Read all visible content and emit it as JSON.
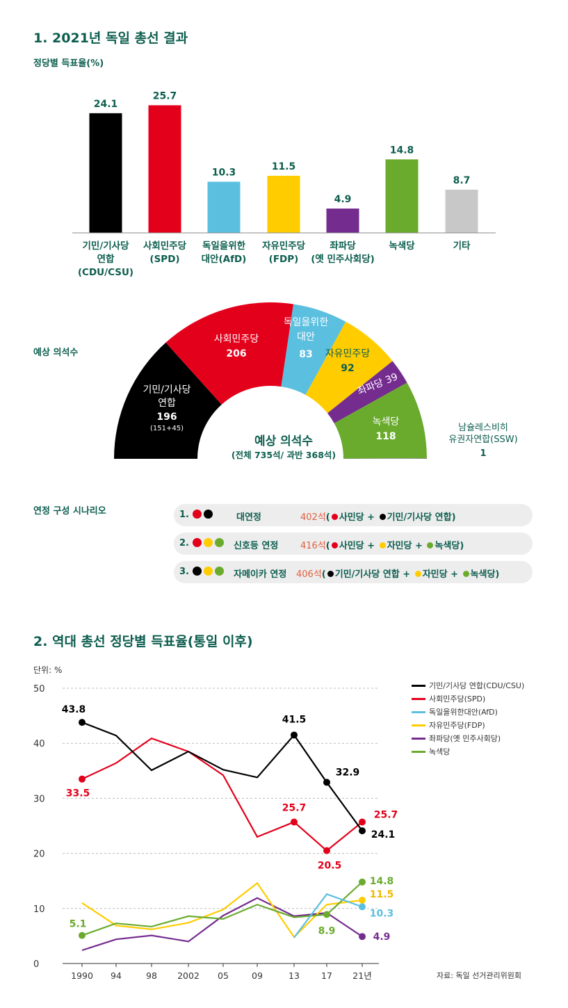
{
  "section1": {
    "title": "1. 2021년 독일 총선 결과",
    "vote_label": "정당별 득표율(%)"
  },
  "chart_data": [
    {
      "type": "bar",
      "title": "정당별 득표율(%)",
      "categories": [
        "기민/기사당\n연합\n(CDU/CSU)",
        "사회민주당\n(SPD)",
        "독일을위한\n대안(AfD)",
        "자유민주당\n(FDP)",
        "좌파당\n(옛 민주사회당)",
        "녹색당",
        "기타"
      ],
      "values": [
        24.1,
        25.7,
        10.3,
        11.5,
        4.9,
        14.8,
        8.7
      ],
      "value_labels": [
        "24.1",
        "25.7",
        "10.3",
        "11.5",
        "4.9",
        "14.8",
        "8.7"
      ],
      "colors": [
        "#000000",
        "#e3001b",
        "#5bbfe0",
        "#ffcc00",
        "#742c8f",
        "#6aab2e",
        "#c8c8c8"
      ],
      "ylim": [
        0,
        28
      ]
    },
    {
      "type": "pie",
      "title": "예상 의석수",
      "center_title": "예상 의석수",
      "center_subtitle": "(전체 735석/ 과반 368석)",
      "categories": [
        "기민/기사당\n연합",
        "사회민주당",
        "독일을위한\n대안",
        "자유민주당",
        "좌파당",
        "녹색당",
        "남슐레스비히\n유권자연합(SSW)"
      ],
      "values": [
        196,
        206,
        83,
        92,
        39,
        118,
        1
      ],
      "value_labels": [
        "196",
        "206",
        "83",
        "92",
        "39",
        "118",
        "1"
      ],
      "sub_labels": [
        "(151+45)",
        "",
        "",
        "",
        "",
        "",
        ""
      ],
      "colors": [
        "#000000",
        "#e3001b",
        "#5bbfe0",
        "#ffcc00",
        "#742c8f",
        "#6aab2e",
        "#8a8a8a"
      ],
      "total": 735
    },
    {
      "type": "line",
      "title": "2. 역대 총선 정당별 득표율(통일 이후)",
      "unit_label": "단위: %",
      "x": [
        "1990",
        "94",
        "98",
        "2002",
        "05",
        "09",
        "13",
        "17",
        "21년"
      ],
      "ylim": [
        0,
        50
      ],
      "yticks": [
        0,
        10,
        20,
        30,
        40,
        50
      ],
      "grid": true,
      "legend": "top-right",
      "series": [
        {
          "name": "기민/기사당 연합(CDU/CSU)",
          "color": "#000000",
          "values": [
            43.8,
            41.4,
            35.1,
            38.5,
            35.2,
            33.8,
            41.5,
            32.9,
            24.1
          ]
        },
        {
          "name": "사회민주당(SPD)",
          "color": "#e3001b",
          "values": [
            33.5,
            36.4,
            40.9,
            38.5,
            34.2,
            23.0,
            25.7,
            20.5,
            25.7
          ]
        },
        {
          "name": "독일을위한대안(AfD)",
          "color": "#5bbfe0",
          "values": [
            null,
            null,
            null,
            null,
            null,
            null,
            4.7,
            12.6,
            10.3
          ]
        },
        {
          "name": "자유민주당(FDP)",
          "color": "#ffcc00",
          "values": [
            11.0,
            6.9,
            6.2,
            7.4,
            9.8,
            14.6,
            4.8,
            10.7,
            11.5
          ]
        },
        {
          "name": "좌파당(옛 민주사회당)",
          "color": "#742c8f",
          "values": [
            2.4,
            4.4,
            5.1,
            4.0,
            8.7,
            11.9,
            8.6,
            9.2,
            4.9
          ]
        },
        {
          "name": "녹색당",
          "color": "#6aab2e",
          "values": [
            5.1,
            7.3,
            6.7,
            8.6,
            8.1,
            10.7,
            8.4,
            8.9,
            14.8
          ]
        }
      ],
      "annotations": [
        {
          "series": 0,
          "index": 0,
          "text": "43.8"
        },
        {
          "series": 0,
          "index": 6,
          "text": "41.5"
        },
        {
          "series": 0,
          "index": 7,
          "text": "32.9"
        },
        {
          "series": 0,
          "index": 8,
          "text": "24.1"
        },
        {
          "series": 1,
          "index": 0,
          "text": "33.5"
        },
        {
          "series": 1,
          "index": 6,
          "text": "25.7"
        },
        {
          "series": 1,
          "index": 7,
          "text": "20.5"
        },
        {
          "series": 1,
          "index": 8,
          "text": "25.7"
        },
        {
          "series": 5,
          "index": 0,
          "text": "5.1"
        },
        {
          "series": 5,
          "index": 7,
          "text": "8.9"
        },
        {
          "series": 5,
          "index": 8,
          "text": "14.8"
        },
        {
          "series": 3,
          "index": 8,
          "text": "11.5"
        },
        {
          "series": 2,
          "index": 8,
          "text": "10.3"
        },
        {
          "series": 4,
          "index": 8,
          "text": "4.9"
        }
      ]
    }
  ],
  "coalitions": {
    "title": "연정 구성 시나리오",
    "rows": [
      {
        "num": "1.",
        "dots": [
          "#e3001b",
          "#000000"
        ],
        "name": "대연정",
        "seats": "402석",
        "detail": [
          {
            "dot": "#e3001b",
            "text": "사민당"
          },
          {
            "sep": " + "
          },
          {
            "dot": "#000000",
            "text": "기민/기사당 연합"
          }
        ]
      },
      {
        "num": "2.",
        "dots": [
          "#e3001b",
          "#ffcc00",
          "#6aab2e"
        ],
        "name": "신호등 연정",
        "seats": "416석",
        "detail": [
          {
            "dot": "#e3001b",
            "text": "사민당"
          },
          {
            "sep": " + "
          },
          {
            "dot": "#ffcc00",
            "text": "자민당"
          },
          {
            "sep": " + "
          },
          {
            "dot": "#6aab2e",
            "text": "녹색당"
          }
        ]
      },
      {
        "num": "3.",
        "dots": [
          "#000000",
          "#ffcc00",
          "#6aab2e"
        ],
        "name": "자메이카 연정",
        "seats": "406석",
        "detail": [
          {
            "dot": "#000000",
            "text": "기민/기사당 연합"
          },
          {
            "sep": " + "
          },
          {
            "dot": "#ffcc00",
            "text": "자민당"
          },
          {
            "sep": " + "
          },
          {
            "dot": "#6aab2e",
            "text": "녹색당"
          }
        ]
      }
    ]
  },
  "source": "자료: 독일 선거관리위원회"
}
